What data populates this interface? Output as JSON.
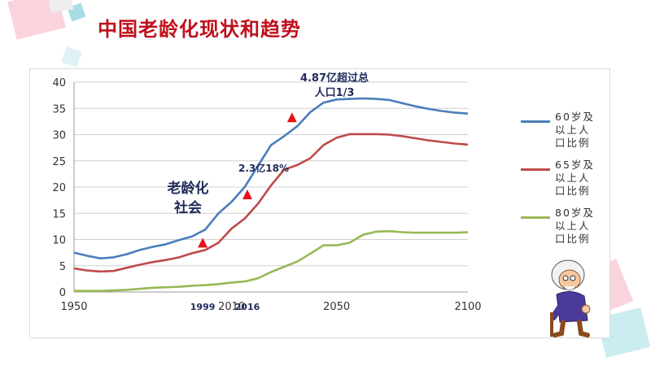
{
  "title": "中国老龄化现状和趋势",
  "chart_data": {
    "type": "line",
    "x_range": [
      1950,
      2100
    ],
    "xticks": [
      "1950",
      "2050",
      "2100"
    ],
    "xticks_positions": [
      1950,
      2050,
      2100
    ],
    "ylim": [
      0,
      40
    ],
    "yticks": [
      0,
      5,
      10,
      15,
      20,
      25,
      30,
      35,
      40
    ],
    "grid": "horizontal",
    "legend_position": "right",
    "series": [
      {
        "name": "60岁及以上人口比例",
        "color": "#4a7ebb",
        "x": [
          1950,
          1955,
          1960,
          1965,
          1970,
          1975,
          1980,
          1985,
          1990,
          1995,
          2000,
          2005,
          2010,
          2015,
          2020,
          2025,
          2030,
          2035,
          2040,
          2045,
          2050,
          2055,
          2060,
          2065,
          2070,
          2075,
          2080,
          2085,
          2090,
          2095,
          2100
        ],
        "y": [
          7.5,
          6.9,
          6.4,
          6.6,
          7.2,
          8.0,
          8.6,
          9.1,
          9.9,
          10.6,
          11.9,
          15.0,
          17.2,
          20.0,
          24.0,
          28.0,
          29.7,
          31.6,
          34.3,
          36.1,
          36.7,
          36.8,
          36.9,
          36.8,
          36.6,
          36.0,
          35.4,
          34.9,
          34.5,
          34.2,
          34.0
        ]
      },
      {
        "name": "65岁及以上人口比例",
        "color": "#be4b48",
        "x": [
          1950,
          1955,
          1960,
          1965,
          1970,
          1975,
          1980,
          1985,
          1990,
          1995,
          2000,
          2005,
          2010,
          2015,
          2020,
          2025,
          2030,
          2035,
          2040,
          2045,
          2050,
          2055,
          2060,
          2065,
          2070,
          2075,
          2080,
          2085,
          2090,
          2095,
          2100
        ],
        "y": [
          4.5,
          4.1,
          3.9,
          4.0,
          4.6,
          5.2,
          5.7,
          6.1,
          6.6,
          7.4,
          8.0,
          9.4,
          12.1,
          14.0,
          16.8,
          20.3,
          23.3,
          24.2,
          25.5,
          28.0,
          29.4,
          30.1,
          30.1,
          30.1,
          30.0,
          29.7,
          29.3,
          28.9,
          28.6,
          28.3,
          28.1
        ]
      },
      {
        "name": "80岁及以上人口比例",
        "color": "#98b954",
        "x": [
          1950,
          1955,
          1960,
          1965,
          1970,
          1975,
          1980,
          1985,
          1990,
          1995,
          2000,
          2005,
          2010,
          2015,
          2020,
          2025,
          2030,
          2035,
          2040,
          2045,
          2050,
          2055,
          2060,
          2065,
          2070,
          2075,
          2080,
          2085,
          2090,
          2095,
          2100
        ],
        "y": [
          0.2,
          0.2,
          0.2,
          0.3,
          0.4,
          0.6,
          0.8,
          0.9,
          1.0,
          1.2,
          1.3,
          1.5,
          1.8,
          2.0,
          2.6,
          3.8,
          4.8,
          5.8,
          7.3,
          8.9,
          8.9,
          9.4,
          10.9,
          11.5,
          11.6,
          11.4,
          11.3,
          11.3,
          11.3,
          11.3,
          11.4
        ]
      }
    ],
    "legend_labels": [
      {
        "line1": "60岁及",
        "line2": "以上人",
        "line3": "口比例"
      },
      {
        "line1": "65岁及",
        "line2": "以上人",
        "line3": "口比例"
      },
      {
        "line1": "80岁及",
        "line2": "以上人",
        "line3": "口比例"
      }
    ],
    "annotations": [
      {
        "year": 1999,
        "text_lines": [
          "老龄化",
          "社会"
        ],
        "year_label": "1999",
        "marker_y": 9.4
      },
      {
        "year": 2016,
        "text_lines": [
          "2.3亿18%"
        ],
        "year_label": "2016",
        "marker_y": 18.6
      },
      {
        "year": 2033,
        "text_lines": [
          "4.87亿超过总",
          "人口1/3"
        ],
        "year_label": "",
        "marker_y": 33.3
      }
    ],
    "extra_x_labels": [
      "1999",
      "2010",
      "2016"
    ],
    "extra_x_positions": [
      1999,
      2010,
      2016
    ]
  }
}
